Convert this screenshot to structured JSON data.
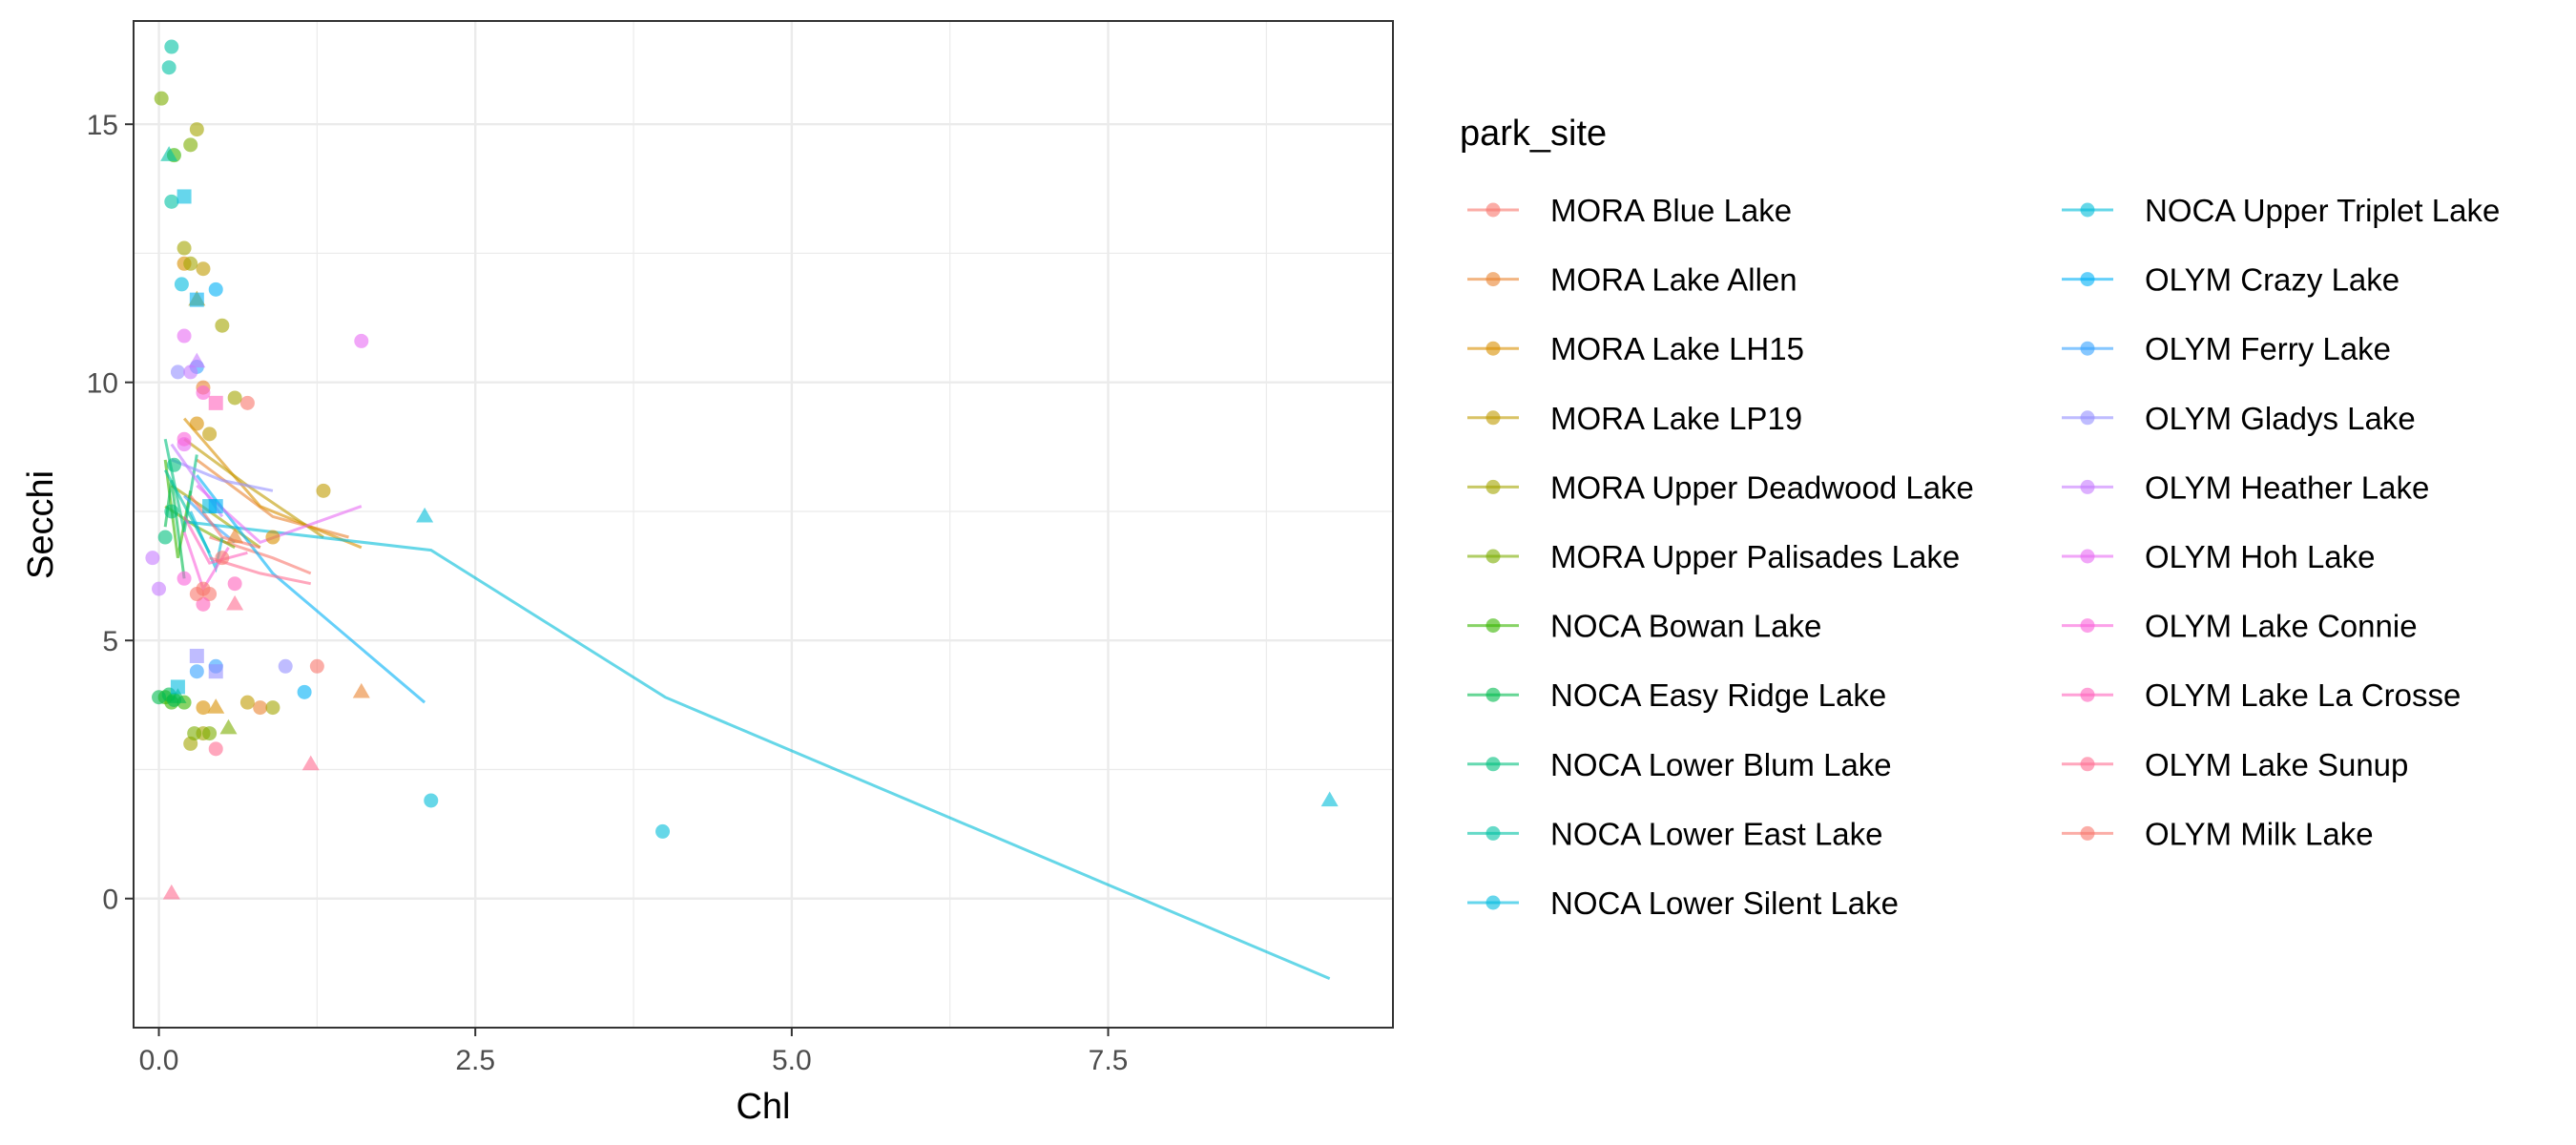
{
  "chart_data": {
    "type": "scatter",
    "xlabel": "Chl",
    "ylabel": "Secchi",
    "xlim": [
      -0.2,
      9.75
    ],
    "ylim": [
      -2.5,
      17.0
    ],
    "x_ticks": [
      0.0,
      2.5,
      5.0,
      7.5
    ],
    "x_tick_labels": [
      "0.0",
      "2.5",
      "5.0",
      "7.5"
    ],
    "y_ticks": [
      0,
      5,
      10,
      15
    ],
    "y_tick_labels": [
      "0",
      "5",
      "10",
      "15"
    ],
    "grid": true,
    "legend_title": "park_site",
    "legend_position": "right",
    "series": [
      {
        "name": "MORA Blue Lake",
        "color": "#F8766D",
        "points": [
          [
            0.4,
            5.9,
            "c"
          ],
          [
            0.7,
            9.6,
            "c"
          ],
          [
            0.5,
            6.6,
            "c"
          ]
        ],
        "line": [
          [
            0.4,
            7.0
          ],
          [
            0.9,
            6.6
          ],
          [
            1.2,
            6.3
          ]
        ]
      },
      {
        "name": "MORA Lake Allen",
        "color": "#EA8331",
        "points": [
          [
            0.35,
            9.9,
            "c"
          ],
          [
            0.6,
            7.0,
            "t"
          ],
          [
            1.6,
            4.0,
            "t"
          ],
          [
            0.8,
            3.7,
            "c"
          ]
        ],
        "line": [
          [
            0.3,
            8.5
          ],
          [
            0.9,
            7.4
          ],
          [
            1.5,
            7.0
          ]
        ]
      },
      {
        "name": "MORA Lake LH15",
        "color": "#D89000",
        "points": [
          [
            0.2,
            12.3,
            "c"
          ],
          [
            0.3,
            9.2,
            "c"
          ],
          [
            0.35,
            3.7,
            "c"
          ],
          [
            0.45,
            3.7,
            "t"
          ],
          [
            0.9,
            7.0,
            "c"
          ]
        ],
        "line": [
          [
            0.2,
            9.3
          ],
          [
            0.8,
            7.6
          ],
          [
            1.6,
            6.8
          ]
        ]
      },
      {
        "name": "MORA Lake LP19",
        "color": "#C09B00",
        "points": [
          [
            0.3,
            11.6,
            "t"
          ],
          [
            0.4,
            9.0,
            "c"
          ],
          [
            1.3,
            7.9,
            "c"
          ],
          [
            0.7,
            3.8,
            "c"
          ],
          [
            0.35,
            12.2,
            "c"
          ]
        ],
        "line": [
          [
            0.2,
            8.9
          ],
          [
            0.7,
            8.0
          ],
          [
            1.3,
            7.0
          ]
        ]
      },
      {
        "name": "MORA Upper Deadwood Lake",
        "color": "#A3A500",
        "points": [
          [
            0.2,
            12.6,
            "c"
          ],
          [
            0.3,
            14.9,
            "c"
          ],
          [
            0.5,
            11.1,
            "c"
          ],
          [
            0.6,
            9.7,
            "c"
          ],
          [
            0.25,
            12.3,
            "c"
          ],
          [
            0.35,
            3.2,
            "c"
          ],
          [
            0.9,
            3.7,
            "c"
          ],
          [
            0.25,
            3.0,
            "c"
          ]
        ],
        "line": [
          [
            0.1,
            8.0
          ],
          [
            0.4,
            7.5
          ],
          [
            0.8,
            6.8
          ]
        ]
      },
      {
        "name": "MORA Upper Palisades Lake",
        "color": "#7CAE00",
        "points": [
          [
            0.02,
            15.5,
            "c"
          ],
          [
            0.25,
            14.6,
            "c"
          ],
          [
            0.28,
            3.2,
            "c"
          ],
          [
            0.55,
            3.3,
            "t"
          ],
          [
            0.4,
            3.2,
            "c"
          ]
        ],
        "line": [
          [
            0.05,
            7.6
          ],
          [
            0.3,
            7.2
          ],
          [
            0.6,
            6.8
          ]
        ]
      },
      {
        "name": "NOCA Bowan Lake",
        "color": "#39B600",
        "points": [
          [
            0.12,
            14.4,
            "c"
          ],
          [
            0.05,
            3.9,
            "c"
          ],
          [
            0.1,
            3.8,
            "c"
          ],
          [
            0.2,
            3.8,
            "c"
          ]
        ],
        "line": [
          [
            0.05,
            8.5
          ],
          [
            0.15,
            6.6
          ],
          [
            0.25,
            7.9
          ]
        ]
      },
      {
        "name": "NOCA Easy Ridge Lake",
        "color": "#00BB4E",
        "points": [
          [
            0.0,
            3.9,
            "c"
          ],
          [
            0.08,
            3.95,
            "c"
          ],
          [
            0.12,
            3.85,
            "c"
          ],
          [
            0.15,
            3.9,
            "t"
          ]
        ],
        "line": [
          [
            0.05,
            7.2
          ],
          [
            0.1,
            8.1
          ],
          [
            0.2,
            6.2
          ]
        ]
      },
      {
        "name": "NOCA Lower Blum Lake",
        "color": "#00BF7D",
        "points": [
          [
            0.05,
            7.0,
            "c"
          ],
          [
            0.1,
            7.5,
            "c"
          ],
          [
            0.12,
            8.4,
            "c"
          ]
        ],
        "line": [
          [
            0.05,
            8.9
          ],
          [
            0.2,
            7.1
          ],
          [
            0.3,
            8.6
          ]
        ]
      },
      {
        "name": "NOCA Lower East Lake",
        "color": "#00C1A3",
        "points": [
          [
            0.1,
            16.5,
            "c"
          ],
          [
            0.08,
            16.1,
            "c"
          ],
          [
            0.1,
            13.5,
            "c"
          ],
          [
            0.08,
            14.4,
            "t"
          ]
        ],
        "line": [
          [
            0.05,
            8.3
          ],
          [
            0.25,
            7.4
          ],
          [
            0.4,
            6.7
          ]
        ]
      },
      {
        "name": "NOCA Lower Silent Lake",
        "color": "#00BAE0",
        "points": [
          [
            0.2,
            13.6,
            "s"
          ],
          [
            0.18,
            11.9,
            "c"
          ],
          [
            0.4,
            7.6,
            "s"
          ],
          [
            0.15,
            4.1,
            "s"
          ]
        ],
        "line": [
          [
            0.25,
            7.5
          ],
          [
            0.45,
            6.4
          ],
          [
            0.5,
            7.0
          ]
        ]
      },
      {
        "name": "NOCA Upper Triplet Lake",
        "color": "#00BCD8",
        "points": [
          [
            2.15,
            1.9,
            "c"
          ],
          [
            3.98,
            1.3,
            "c"
          ],
          [
            9.25,
            1.9,
            "t"
          ],
          [
            2.1,
            7.4,
            "t"
          ]
        ],
        "line": [
          [
            0.2,
            7.3
          ],
          [
            2.15,
            6.75
          ],
          [
            4.0,
            3.9
          ],
          [
            9.25,
            -1.55
          ]
        ]
      },
      {
        "name": "OLYM Crazy Lake",
        "color": "#00B0F6",
        "points": [
          [
            0.3,
            11.6,
            "s"
          ],
          [
            0.45,
            11.8,
            "c"
          ],
          [
            1.15,
            4.0,
            "c"
          ],
          [
            0.45,
            7.6,
            "s"
          ]
        ],
        "line": [
          [
            0.3,
            8.2
          ],
          [
            0.9,
            6.3
          ],
          [
            2.1,
            3.8
          ]
        ]
      },
      {
        "name": "OLYM Ferry Lake",
        "color": "#35A2FF",
        "points": [
          [
            0.3,
            10.3,
            "c"
          ],
          [
            0.45,
            4.5,
            "c"
          ],
          [
            0.3,
            4.4,
            "c"
          ]
        ],
        "line": [
          [
            0.2,
            7.8
          ],
          [
            0.4,
            7.3
          ],
          [
            0.6,
            6.9
          ]
        ]
      },
      {
        "name": "OLYM Gladys Lake",
        "color": "#9590FF",
        "points": [
          [
            0.15,
            10.2,
            "c"
          ],
          [
            1.0,
            4.5,
            "c"
          ],
          [
            0.3,
            4.7,
            "s"
          ],
          [
            0.45,
            4.4,
            "s"
          ]
        ],
        "line": [
          [
            0.1,
            8.5
          ],
          [
            0.5,
            8.1
          ],
          [
            0.9,
            7.9
          ]
        ]
      },
      {
        "name": "OLYM Heather Lake",
        "color": "#C77CFF",
        "points": [
          [
            0.25,
            10.2,
            "c"
          ],
          [
            -0.05,
            6.6,
            "c"
          ],
          [
            0.0,
            6.0,
            "c"
          ],
          [
            0.3,
            10.4,
            "t"
          ]
        ],
        "line": [
          [
            0.1,
            8.8
          ],
          [
            0.3,
            8.1
          ],
          [
            0.5,
            7.4
          ]
        ]
      },
      {
        "name": "OLYM Hoh Lake",
        "color": "#E76BF3",
        "points": [
          [
            1.6,
            10.8,
            "c"
          ],
          [
            0.2,
            10.9,
            "c"
          ],
          [
            0.2,
            8.8,
            "c"
          ]
        ],
        "line": [
          [
            0.3,
            8.0
          ],
          [
            0.8,
            6.9
          ],
          [
            1.6,
            7.6
          ]
        ]
      },
      {
        "name": "OLYM Lake Connie",
        "color": "#FA62DB",
        "points": [
          [
            0.35,
            9.8,
            "c"
          ],
          [
            0.2,
            6.2,
            "c"
          ],
          [
            0.2,
            8.9,
            "c"
          ]
        ],
        "line": [
          [
            0.2,
            7.1
          ],
          [
            0.35,
            6.0
          ],
          [
            0.55,
            6.8
          ]
        ]
      },
      {
        "name": "OLYM Lake La Crosse",
        "color": "#FF62BC",
        "points": [
          [
            0.6,
            6.1,
            "c"
          ],
          [
            0.35,
            5.7,
            "c"
          ],
          [
            0.45,
            9.6,
            "s"
          ]
        ],
        "line": [
          [
            0.2,
            7.4
          ],
          [
            0.4,
            6.5
          ],
          [
            0.7,
            6.7
          ]
        ]
      },
      {
        "name": "OLYM Lake Sunup",
        "color": "#FF6C91",
        "points": [
          [
            0.1,
            0.1,
            "t"
          ],
          [
            1.2,
            2.6,
            "t"
          ],
          [
            0.6,
            5.7,
            "t"
          ],
          [
            0.45,
            2.9,
            "c"
          ]
        ],
        "line": [
          [
            0.4,
            6.6
          ],
          [
            0.8,
            6.3
          ],
          [
            1.2,
            6.1
          ]
        ]
      },
      {
        "name": "OLYM Milk Lake",
        "color": "#F8766D",
        "points": [
          [
            1.25,
            4.5,
            "c"
          ],
          [
            0.35,
            6.0,
            "c"
          ],
          [
            0.3,
            5.9,
            "c"
          ]
        ],
        "line": [
          [
            0.25,
            7.8
          ],
          [
            0.5,
            7.0
          ],
          [
            0.8,
            6.8
          ]
        ]
      }
    ]
  }
}
